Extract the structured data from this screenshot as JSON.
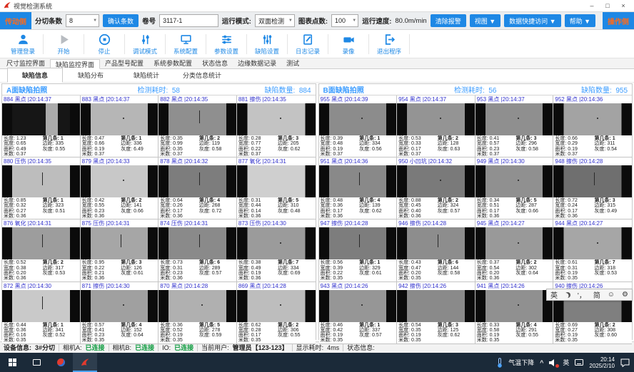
{
  "window": {
    "title": "视觉检测系统",
    "minimize": "–",
    "maximize": "□",
    "close": "×"
  },
  "toolbar1": {
    "side_left": "传动侧",
    "side_right": "操作侧",
    "slit_count_label": "分切条数",
    "slit_count_value": "8",
    "confirm_button": "确认条数",
    "roll_label": "卷号",
    "roll_value": "3117-1",
    "run_mode_label": "运行模式:",
    "run_mode_value": "双面检测",
    "chart_points_label": "图表点数:",
    "chart_points_value": "100",
    "speed_label": "运行速度:",
    "speed_value": "80.0m/min",
    "clear_alarm_button": "清除报警",
    "view_button": "视图 ▼",
    "data_access_button": "数据快捷访问 ▼",
    "help_button": "帮助 ▼"
  },
  "toolbar2": {
    "buttons": [
      {
        "label": "管理登录",
        "icon": "user-icon"
      },
      {
        "label": "开始",
        "icon": "play-icon"
      },
      {
        "label": "停止",
        "icon": "stop-icon"
      },
      {
        "label": "调试模式",
        "icon": "tune-icon"
      },
      {
        "label": "系统配置",
        "icon": "monitor-icon"
      },
      {
        "label": "参数设置",
        "icon": "sliders-icon"
      },
      {
        "label": "缺陷设置",
        "icon": "levels-icon"
      },
      {
        "label": "日志记录",
        "icon": "journal-icon"
      },
      {
        "label": "录像",
        "icon": "camera-icon"
      },
      {
        "label": "退出程序",
        "icon": "exit-icon"
      }
    ]
  },
  "main_tabs": {
    "items": [
      "尺寸监控界面",
      "缺陷监控界面",
      "产品型号配置",
      "系统参数配置",
      "状态信息",
      "边缘数据记录",
      "测试"
    ],
    "active_index": 1
  },
  "sub_tabs": {
    "items": [
      "缺陷信息",
      "缺陷分布",
      "缺陷统计",
      "分类信息统计"
    ],
    "active_index": 0
  },
  "meta_labels": {
    "length": "长度:",
    "width": "宽度:",
    "area": "面积:",
    "meter": "米数:",
    "strip": "第几条:",
    "margin": "边距:",
    "gray": "灰度:"
  },
  "panels": [
    {
      "title": "A面缺陷拍照",
      "time_label": "检测耗时:",
      "time_value": "58",
      "count_label": "缺陷数量:",
      "count_value": "884",
      "cells": [
        {
          "id": "884",
          "type": "黑点",
          "time": "20:14:37",
          "length": "1.23",
          "width": "0.65",
          "area": "0.49",
          "meter": "0.37",
          "strip": "1",
          "margin": "335",
          "gray": "0.55",
          "shade": "#161616",
          "defect": "lightband"
        },
        {
          "id": "883",
          "type": "黑点",
          "time": "20:14:37",
          "length": "0.47",
          "width": "0.66",
          "area": "0.19",
          "meter": "0.37",
          "strip": "1",
          "margin": "336",
          "gray": "6.49",
          "shade": "#b6b6b6",
          "defect": "dot"
        },
        {
          "id": "882",
          "type": "黑点",
          "time": "20:14:35",
          "length": "0.35",
          "width": "0.99",
          "area": "0.35",
          "meter": "0.37",
          "strip": "2",
          "margin": "119",
          "gray": "0.58",
          "shade": "#8f8f8f",
          "defect": "vline"
        },
        {
          "id": "881",
          "type": "擦伤",
          "time": "20:14:35",
          "length": "0.28",
          "width": "0.77",
          "area": "0.22",
          "meter": "0.37",
          "strip": "3",
          "margin": "205",
          "gray": "0.62",
          "shade": "#c3c3c3",
          "defect": "dot"
        },
        {
          "id": "880",
          "type": "压伤",
          "time": "20:14:35",
          "length": "0.85",
          "width": "0.32",
          "area": "0.27",
          "meter": "0.36",
          "strip": "1",
          "margin": "323",
          "gray": "0.51",
          "shade": "#bdbdbd",
          "defect": "vline"
        },
        {
          "id": "879",
          "type": "黑点",
          "time": "20:14:33",
          "length": "0.42",
          "width": "0.55",
          "area": "0.23",
          "meter": "0.36",
          "strip": "2",
          "margin": "141",
          "gray": "0.66",
          "shade": "#c8c8c8",
          "defect": "dot"
        },
        {
          "id": "878",
          "type": "黑点",
          "time": "20:14:32",
          "length": "0.64",
          "width": "0.26",
          "area": "0.17",
          "meter": "0.36",
          "strip": "4",
          "margin": "268",
          "gray": "0.72",
          "shade": "#7d7d7d",
          "defect": "vline"
        },
        {
          "id": "877",
          "type": "氧化",
          "time": "20:14:31",
          "length": "0.31",
          "width": "0.44",
          "area": "0.14",
          "meter": "0.36",
          "strip": "5",
          "margin": "310",
          "gray": "0.48",
          "shade": "#cfcfcf",
          "defect": "none"
        },
        {
          "id": "876",
          "type": "氧化",
          "time": "20:14:31",
          "length": "0.52",
          "width": "0.38",
          "area": "0.20",
          "meter": "0.36",
          "strip": "2",
          "margin": "317",
          "gray": "0.53",
          "shade": "#9d9d9d",
          "defect": "vline"
        },
        {
          "id": "875",
          "type": "压伤",
          "time": "20:14:31",
          "length": "0.95",
          "width": "0.22",
          "area": "0.21",
          "meter": "0.36",
          "strip": "3",
          "margin": "126",
          "gray": "0.61",
          "shade": "#a6a6a6",
          "defect": "vline"
        },
        {
          "id": "874",
          "type": "压伤",
          "time": "20:14:31",
          "length": "0.73",
          "width": "0.31",
          "area": "0.23",
          "meter": "0.36",
          "strip": "6",
          "margin": "289",
          "gray": "0.57",
          "shade": "#8a8a8a",
          "defect": "vline"
        },
        {
          "id": "873",
          "type": "压伤",
          "time": "20:14:30",
          "length": "0.38",
          "width": "0.49",
          "area": "0.19",
          "meter": "0.36",
          "strip": "7",
          "margin": "334",
          "gray": "0.69",
          "shade": "#9b9b9b",
          "defect": "dot"
        },
        {
          "id": "872",
          "type": "黑点",
          "time": "20:14:30",
          "length": "0.44",
          "width": "0.36",
          "area": "0.16",
          "meter": "0.35",
          "strip": "1",
          "margin": "341",
          "gray": "0.52",
          "shade": "#c9c9c9",
          "defect": "vline"
        },
        {
          "id": "871",
          "type": "擦伤",
          "time": "20:14:30",
          "length": "0.57",
          "width": "0.41",
          "area": "0.23",
          "meter": "0.35",
          "strip": "4",
          "margin": "152",
          "gray": "0.64",
          "shade": "#a0a0a0",
          "defect": "dot"
        },
        {
          "id": "870",
          "type": "黑点",
          "time": "20:14:28",
          "length": "0.36",
          "width": "0.52",
          "area": "0.19",
          "meter": "0.35",
          "strip": "5",
          "margin": "278",
          "gray": "0.59",
          "shade": "#b0b0b0",
          "defect": "dot"
        },
        {
          "id": "869",
          "type": "黑点",
          "time": "20:14:28",
          "length": "0.62",
          "width": "0.28",
          "area": "0.17",
          "meter": "0.35",
          "strip": "2",
          "margin": "306",
          "gray": "0.55",
          "shade": "#bdbdbd",
          "defect": "dot"
        }
      ]
    },
    {
      "title": "B面缺陷拍照",
      "time_label": "检测耗时:",
      "time_value": "56",
      "count_label": "缺陷数量:",
      "count_value": "955",
      "cells": [
        {
          "id": "955",
          "type": "黑点",
          "time": "20:14:39",
          "length": "0.39",
          "width": "0.48",
          "area": "0.19",
          "meter": "0.37",
          "strip": "1",
          "margin": "334",
          "gray": "0.56",
          "shade": "#8c8c8c",
          "defect": "dot"
        },
        {
          "id": "954",
          "type": "黑点",
          "time": "20:14:37",
          "length": "0.53",
          "width": "0.33",
          "area": "0.17",
          "meter": "0.37",
          "strip": "2",
          "margin": "128",
          "gray": "0.63",
          "shade": "#949494",
          "defect": "dot"
        },
        {
          "id": "953",
          "type": "黑点",
          "time": "20:14:37",
          "length": "0.41",
          "width": "0.57",
          "area": "0.23",
          "meter": "0.37",
          "strip": "3",
          "margin": "296",
          "gray": "0.58",
          "shade": "#8f8f8f",
          "defect": "dot"
        },
        {
          "id": "952",
          "type": "黑点",
          "time": "20:14:36",
          "length": "0.66",
          "width": "0.29",
          "area": "0.19",
          "meter": "0.37",
          "strip": "1",
          "margin": "311",
          "gray": "0.54",
          "shade": "#a3a3a3",
          "defect": "dot"
        },
        {
          "id": "951",
          "type": "黑点",
          "time": "20:14:36",
          "length": "0.48",
          "width": "0.36",
          "area": "0.17",
          "meter": "0.36",
          "strip": "4",
          "margin": "139",
          "gray": "0.62",
          "shade": "#898989",
          "defect": "vline"
        },
        {
          "id": "950",
          "type": "小凹坑",
          "time": "20:14:32",
          "length": "0.88",
          "width": "0.45",
          "area": "0.40",
          "meter": "0.36",
          "strip": "2",
          "margin": "324",
          "gray": "0.57",
          "shade": "#7a7a7a",
          "defect": "dot"
        },
        {
          "id": "949",
          "type": "黑点",
          "time": "20:14:30",
          "length": "0.34",
          "width": "0.51",
          "area": "0.17",
          "meter": "0.36",
          "strip": "5",
          "margin": "287",
          "gray": "0.66",
          "shade": "#909090",
          "defect": "dot"
        },
        {
          "id": "948",
          "type": "擦伤",
          "time": "20:14:28",
          "length": "0.72",
          "width": "0.24",
          "area": "0.17",
          "meter": "0.36",
          "strip": "3",
          "margin": "315",
          "gray": "0.49",
          "shade": "#6f6f6f",
          "defect": "vline"
        },
        {
          "id": "947",
          "type": "擦伤",
          "time": "20:14:28",
          "length": "0.56",
          "width": "0.39",
          "area": "0.22",
          "meter": "0.35",
          "strip": "1",
          "margin": "329",
          "gray": "0.61",
          "shade": "#7d7d7d",
          "defect": "vline"
        },
        {
          "id": "946",
          "type": "擦伤",
          "time": "20:14:28",
          "length": "0.43",
          "width": "0.47",
          "area": "0.20",
          "meter": "0.35",
          "strip": "6",
          "margin": "144",
          "gray": "0.58",
          "shade": "#8d8d8d",
          "defect": "vline"
        },
        {
          "id": "945",
          "type": "黑点",
          "time": "20:14:27",
          "length": "0.37",
          "width": "0.54",
          "area": "0.20",
          "meter": "0.36",
          "strip": "2",
          "margin": "302",
          "gray": "0.64",
          "shade": "#999999",
          "defect": "dot"
        },
        {
          "id": "944",
          "type": "黑点",
          "time": "20:14:27",
          "length": "0.61",
          "width": "0.31",
          "area": "0.19",
          "meter": "0.35",
          "strip": "7",
          "margin": "318",
          "gray": "0.53",
          "shade": "#a6a6a6",
          "defect": "dot"
        },
        {
          "id": "943",
          "type": "黑点",
          "time": "20:14:26",
          "length": "0.46",
          "width": "0.42",
          "area": "0.19",
          "meter": "0.35",
          "strip": "1",
          "margin": "337",
          "gray": "0.57",
          "shade": "#969696",
          "defect": "dot"
        },
        {
          "id": "942",
          "type": "擦伤",
          "time": "20:14:26",
          "length": "0.54",
          "width": "0.35",
          "area": "0.19",
          "meter": "0.35",
          "strip": "3",
          "margin": "125",
          "gray": "0.62",
          "shade": "#8a8a8a",
          "defect": "none"
        },
        {
          "id": "941",
          "type": "黑点",
          "time": "20:14:26",
          "length": "0.33",
          "width": "0.58",
          "area": "0.19",
          "meter": "0.35",
          "strip": "4",
          "margin": "291",
          "gray": "0.55",
          "shade": "#909090",
          "defect": "dot"
        },
        {
          "id": "940",
          "type": "擦伤",
          "time": "20:14:26",
          "length": "0.69",
          "width": "0.27",
          "area": "0.19",
          "meter": "0.35",
          "strip": "2",
          "margin": "308",
          "gray": "0.60",
          "shade": "#7f7f7f",
          "defect": "none"
        }
      ]
    }
  ],
  "ime_bar": {
    "lang": "英",
    "punct": "'，",
    "simp": "简",
    "emoji": "☺",
    "settings": "⚙"
  },
  "statusbar": {
    "device_label": "设备信息:",
    "device_value": "3#分切",
    "cam_a_label": "相机A:",
    "cam_a_value": "已连接",
    "cam_b_label": "相机B:",
    "cam_b_value": "已连接",
    "io_label": "IO:",
    "io_value": "已连接",
    "user_label": "当前用户:",
    "user_value": "管理员【123-123】",
    "display_label": "显示耗时:",
    "display_value": "4ms",
    "status_label": "状态信息:"
  },
  "taskbar": {
    "weather_text": "气温下降",
    "ime_lang": "英",
    "time": "20:14",
    "date": "2025/2/10"
  },
  "colors": {
    "accent_blue": "#1e88e5",
    "header_blue": "#3b9cff",
    "cell_header_blue": "#3232cc",
    "connected_green": "#0a9a3c",
    "taskbar_dark": "#1b2a39"
  }
}
